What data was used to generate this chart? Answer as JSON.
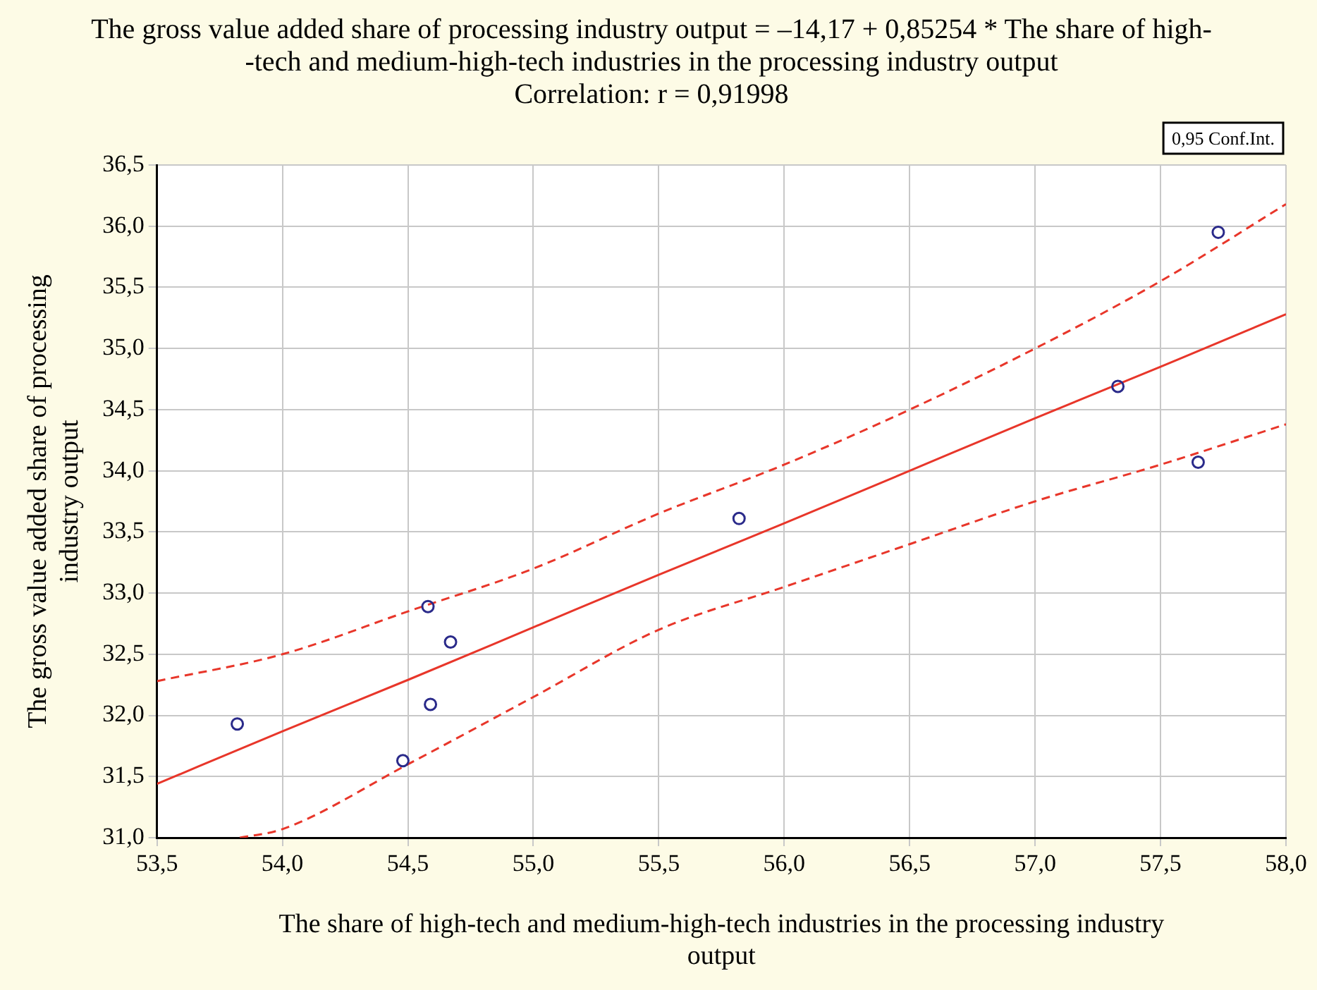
{
  "chart_data": {
    "type": "scatter",
    "title": "The gross value added share of processing industry output = –14,17 + 0,85254 * The share of high-\n-tech and medium-high-tech industries in the processing industry output\nCorrelation: r = 0,91998",
    "xlabel": "The share of high-tech and medium-high-tech industries in the processing industry\noutput",
    "ylabel": "The gross value added share of processing\nindustry output",
    "annotations": [
      "0,95 Conf.Int."
    ],
    "series": [
      {
        "color": "#2a2a8a",
        "x": [
          53.82,
          54.48,
          54.58,
          54.59,
          54.67,
          55.82,
          57.33,
          57.65,
          57.73
        ],
        "values": [
          31.93,
          31.63,
          32.89,
          32.09,
          32.6,
          33.61,
          34.69,
          34.07,
          35.95
        ]
      },
      {
        "type": "line",
        "marker": "none",
        "color": "#e8362a",
        "x": [
          53.5,
          54.0,
          54.5,
          55.0,
          55.5,
          56.0,
          56.5,
          57.0,
          57.5,
          58.0
        ],
        "values": [
          31.44,
          31.87,
          32.29,
          32.72,
          33.15,
          33.57,
          34.0,
          34.43,
          34.85,
          35.28
        ]
      },
      {
        "type": "line",
        "marker": "none",
        "line_style": "dashed",
        "color": "#e8362a",
        "x": [
          53.5,
          54.0,
          54.5,
          55.0,
          55.5,
          56.0,
          56.5,
          57.0,
          57.5,
          58.0
        ],
        "values": [
          32.28,
          32.5,
          32.85,
          33.2,
          33.65,
          34.05,
          34.5,
          35.0,
          35.55,
          36.18
        ]
      },
      {
        "type": "line",
        "marker": "none",
        "line_style": "dashed",
        "color": "#e8362a",
        "x": [
          53.83,
          54.0,
          54.5,
          55.0,
          55.5,
          56.0,
          56.5,
          57.0,
          57.5,
          58.0
        ],
        "values": [
          31.0,
          31.07,
          31.6,
          32.15,
          32.7,
          33.05,
          33.4,
          33.75,
          34.05,
          34.38
        ]
      }
    ],
    "xlim": [
      53.5,
      58.0
    ],
    "xticks": [
      {
        "value": 53.5,
        "label": "53,5"
      },
      {
        "value": 54.0,
        "label": "54,0"
      },
      {
        "value": 54.5,
        "label": "54,5"
      },
      {
        "value": 55.0,
        "label": "55,0"
      },
      {
        "value": 55.5,
        "label": "55,5"
      },
      {
        "value": 56.0,
        "label": "56,0"
      },
      {
        "value": 56.5,
        "label": "56,5"
      },
      {
        "value": 57.0,
        "label": "57,0"
      },
      {
        "value": 57.5,
        "label": "57,5"
      },
      {
        "value": 58.0,
        "label": "58,0"
      }
    ],
    "ylim": [
      31.0,
      36.5
    ],
    "yticks": [
      {
        "value": 31.0,
        "label": "31,0"
      },
      {
        "value": 31.5,
        "label": "31,5"
      },
      {
        "value": 32.0,
        "label": "32,0"
      },
      {
        "value": 32.5,
        "label": "32,5"
      },
      {
        "value": 33.0,
        "label": "33,0"
      },
      {
        "value": 33.5,
        "label": "33,5"
      },
      {
        "value": 34.0,
        "label": "34,0"
      },
      {
        "value": 34.5,
        "label": "34,5"
      },
      {
        "value": 35.0,
        "label": "35,0"
      },
      {
        "value": 35.5,
        "label": "35,5"
      },
      {
        "value": 36.0,
        "label": "36,0"
      },
      {
        "value": 36.5,
        "label": "36,5"
      }
    ],
    "grid": true,
    "marker": "circle",
    "line_style": "solid",
    "legend": false
  }
}
